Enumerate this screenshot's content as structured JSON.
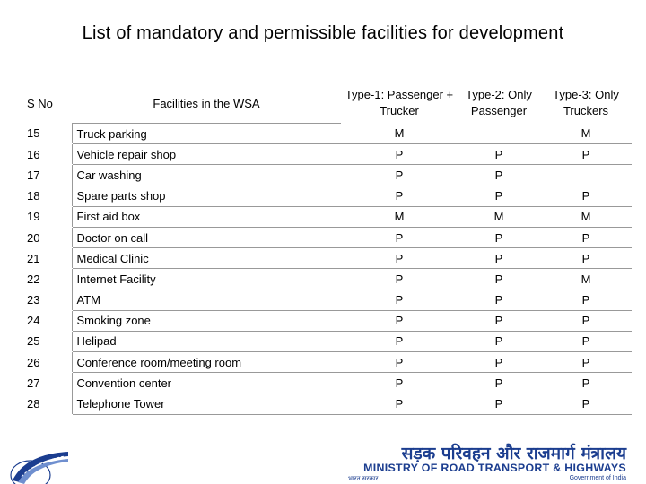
{
  "title": "List of mandatory and permissible facilities for development",
  "table": {
    "headers": {
      "sno": "S No",
      "facility": "Facilities in the WSA",
      "type1": "Type-1: Passenger + Trucker",
      "type2": "Type-2: Only Passenger",
      "type3": "Type-3: Only Truckers"
    },
    "rows": [
      {
        "sno": "15",
        "facility": "Truck parking",
        "t1": "M",
        "t2": "",
        "t3": "M"
      },
      {
        "sno": "16",
        "facility": "Vehicle repair shop",
        "t1": "P",
        "t2": "P",
        "t3": "P"
      },
      {
        "sno": "17",
        "facility": "Car washing",
        "t1": "P",
        "t2": "P",
        "t3": ""
      },
      {
        "sno": "18",
        "facility": "Spare parts shop",
        "t1": "P",
        "t2": "P",
        "t3": "P"
      },
      {
        "sno": "19",
        "facility": "First aid box",
        "t1": "M",
        "t2": "M",
        "t3": "M"
      },
      {
        "sno": "20",
        "facility": "Doctor on call",
        "t1": "P",
        "t2": "P",
        "t3": "P"
      },
      {
        "sno": "21",
        "facility": "Medical Clinic",
        "t1": "P",
        "t2": "P",
        "t3": "P"
      },
      {
        "sno": "22",
        "facility": "Internet Facility",
        "t1": "P",
        "t2": "P",
        "t3": "M"
      },
      {
        "sno": "23",
        "facility": "ATM",
        "t1": "P",
        "t2": "P",
        "t3": "P"
      },
      {
        "sno": "24",
        "facility": "Smoking zone",
        "t1": "P",
        "t2": "P",
        "t3": "P"
      },
      {
        "sno": "25",
        "facility": "Helipad",
        "t1": "P",
        "t2": "P",
        "t3": "P"
      },
      {
        "sno": "26",
        "facility": "Conference room/meeting room",
        "t1": "P",
        "t2": "P",
        "t3": "P"
      },
      {
        "sno": "27",
        "facility": "Convention center",
        "t1": "P",
        "t2": "P",
        "t3": "P"
      },
      {
        "sno": "28",
        "facility": "Telephone Tower",
        "t1": "P",
        "t2": "P",
        "t3": "P"
      }
    ]
  },
  "footer": {
    "hindi_name": "सड़क परिवहन और राजमार्ग मंत्रालय",
    "ministry_name": "MINISTRY OF ROAD TRANSPORT & HIGHWAYS",
    "bharat_sarkar": "भारत सरकार",
    "government": "Government of India",
    "brand_color": "#1b3d8f"
  }
}
